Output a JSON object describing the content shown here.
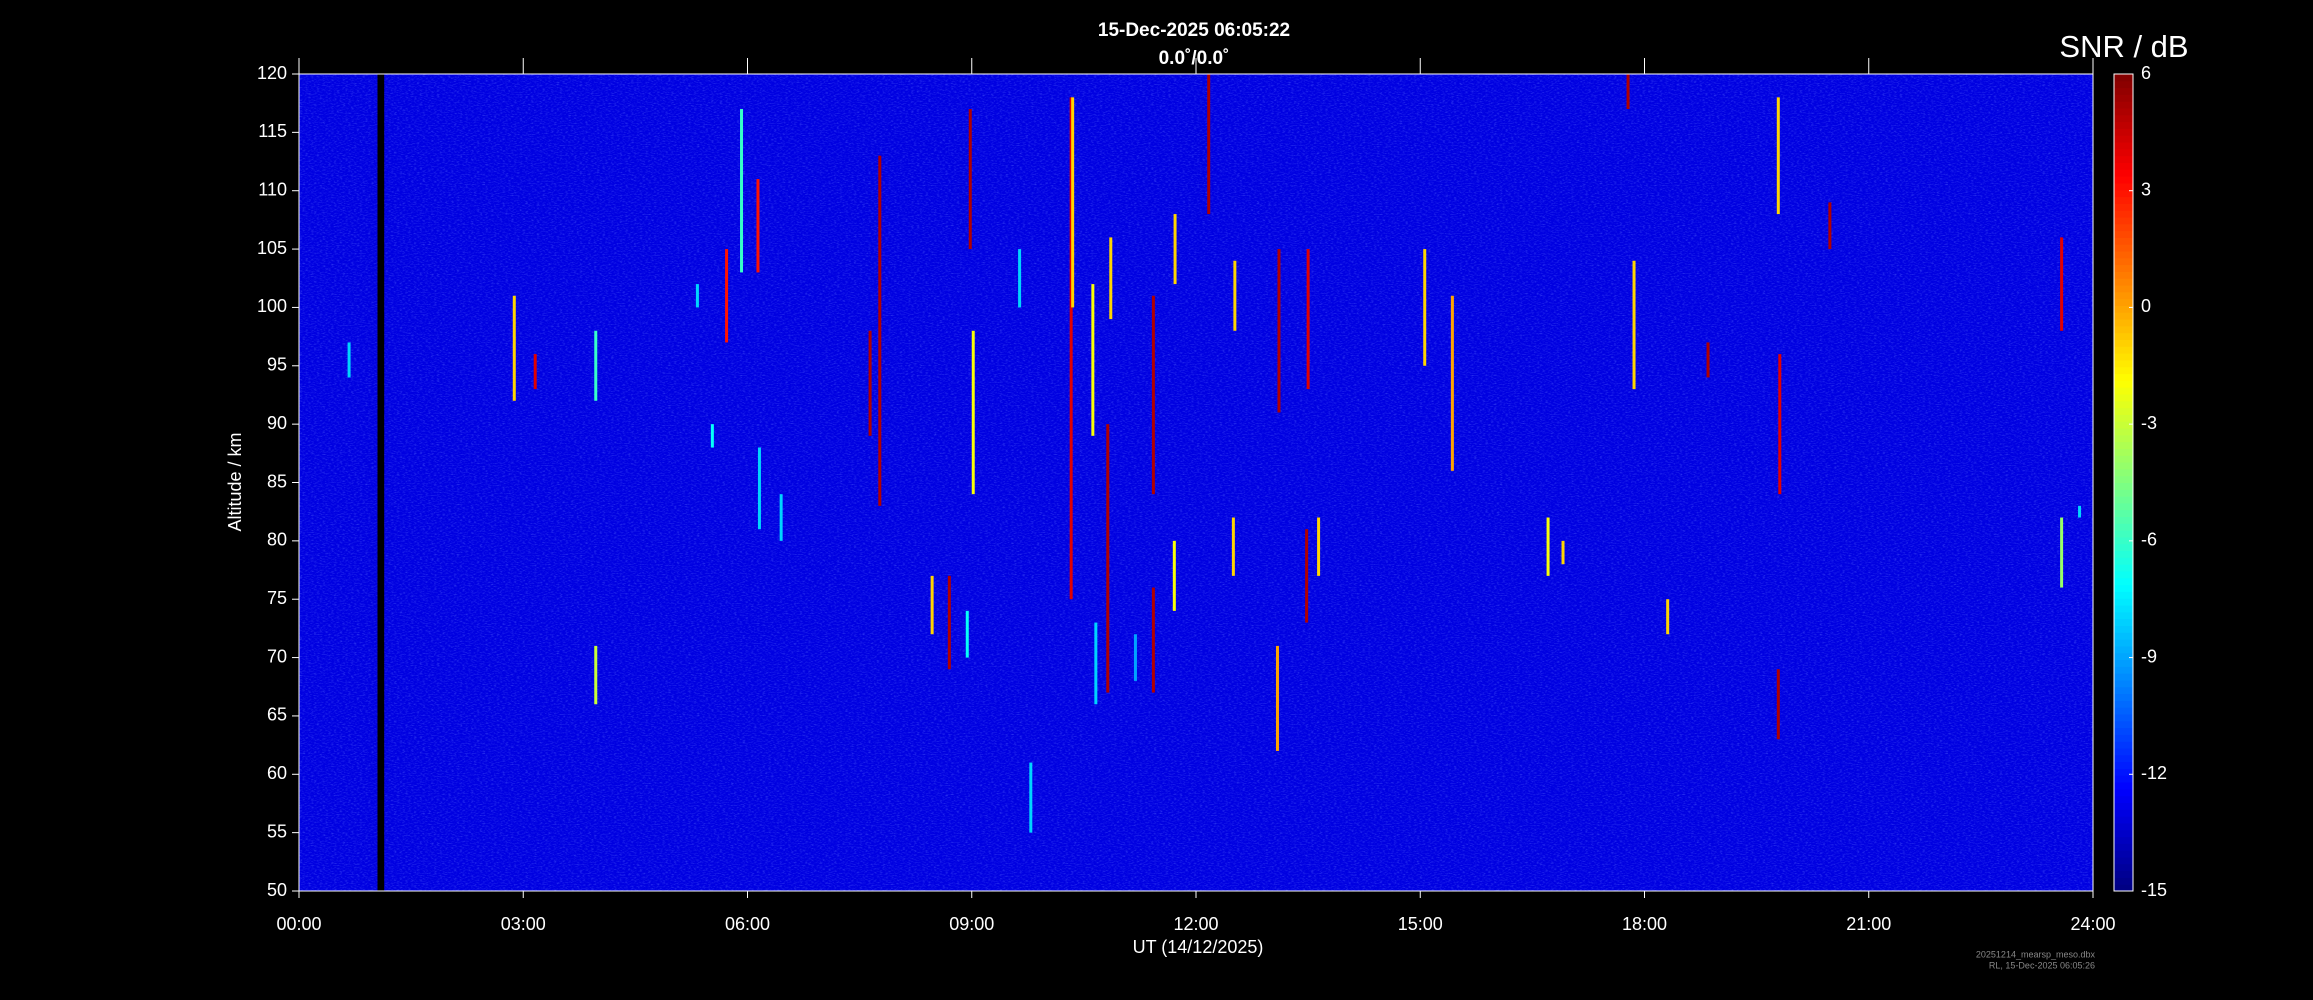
{
  "chart_data": {
    "type": "heatmap",
    "title": "15-Dec-2025 06:05:22",
    "subtitle": "0.0˚/0.0˚",
    "xlabel": "UT (14/12/2025)",
    "ylabel": "Altitude / km",
    "colorbar_label": "SNR / dB",
    "footnotes": [
      "20251214_mearsp_meso.dbx",
      "RL, 15-Dec-2025 06:05:26"
    ],
    "xlim": [
      0,
      24
    ],
    "xticks": [
      {
        "value": 0,
        "label": "00:00"
      },
      {
        "value": 3,
        "label": "03:00"
      },
      {
        "value": 6,
        "label": "06:00"
      },
      {
        "value": 9,
        "label": "09:00"
      },
      {
        "value": 12,
        "label": "12:00"
      },
      {
        "value": 15,
        "label": "15:00"
      },
      {
        "value": 18,
        "label": "18:00"
      },
      {
        "value": 21,
        "label": "21:00"
      },
      {
        "value": 24,
        "label": "24:00"
      }
    ],
    "ylim": [
      50,
      120
    ],
    "yticks": [
      50,
      55,
      60,
      65,
      70,
      75,
      80,
      85,
      90,
      95,
      100,
      105,
      110,
      115,
      120
    ],
    "clim": [
      -15,
      6
    ],
    "cticks": [
      -15,
      -12,
      -9,
      -6,
      -3,
      0,
      3,
      6
    ],
    "colormap": "jet",
    "background_value": -13,
    "gaps": [
      [
        1.05,
        1.14
      ]
    ],
    "echoes": [
      {
        "x": 0.67,
        "y0": 94,
        "y1": 97,
        "value": -8
      },
      {
        "x": 2.88,
        "y0": 92,
        "y1": 101,
        "value": -1
      },
      {
        "x": 3.16,
        "y0": 93,
        "y1": 96,
        "value": 4
      },
      {
        "x": 3.97,
        "y0": 66,
        "y1": 71,
        "value": -3
      },
      {
        "x": 3.97,
        "y0": 92,
        "y1": 98,
        "value": -6
      },
      {
        "x": 5.33,
        "y0": 100,
        "y1": 102,
        "value": -8
      },
      {
        "x": 5.53,
        "y0": 88,
        "y1": 90,
        "value": -7
      },
      {
        "x": 5.72,
        "y0": 97,
        "y1": 105,
        "value": 3
      },
      {
        "x": 5.92,
        "y0": 103,
        "y1": 117,
        "value": -6
      },
      {
        "x": 6.14,
        "y0": 103,
        "y1": 111,
        "value": 3
      },
      {
        "x": 6.16,
        "y0": 81,
        "y1": 88,
        "value": -8
      },
      {
        "x": 6.45,
        "y0": 80,
        "y1": 84,
        "value": -8
      },
      {
        "x": 7.64,
        "y0": 89,
        "y1": 98,
        "value": 5
      },
      {
        "x": 7.77,
        "y0": 83,
        "y1": 113,
        "value": 5
      },
      {
        "x": 8.47,
        "y0": 72,
        "y1": 77,
        "value": -1
      },
      {
        "x": 8.7,
        "y0": 69,
        "y1": 77,
        "value": 5
      },
      {
        "x": 8.94,
        "y0": 70,
        "y1": 74,
        "value": -7
      },
      {
        "x": 8.98,
        "y0": 105,
        "y1": 117,
        "value": 5
      },
      {
        "x": 9.02,
        "y0": 84,
        "y1": 98,
        "value": -2
      },
      {
        "x": 9.64,
        "y0": 100,
        "y1": 105,
        "value": -8
      },
      {
        "x": 9.79,
        "y0": 55,
        "y1": 61,
        "value": -8
      },
      {
        "x": 10.33,
        "y0": 75,
        "y1": 118,
        "value": 4
      },
      {
        "x": 10.35,
        "y0": 100,
        "y1": 118,
        "value": -1
      },
      {
        "x": 10.62,
        "y0": 89,
        "y1": 102,
        "value": -2
      },
      {
        "x": 10.66,
        "y0": 66,
        "y1": 73,
        "value": -8
      },
      {
        "x": 10.82,
        "y0": 67,
        "y1": 90,
        "value": 5
      },
      {
        "x": 10.86,
        "y0": 99,
        "y1": 106,
        "value": -1
      },
      {
        "x": 11.19,
        "y0": 68,
        "y1": 72,
        "value": -9
      },
      {
        "x": 11.43,
        "y0": 67,
        "y1": 76,
        "value": 5
      },
      {
        "x": 11.43,
        "y0": 84,
        "y1": 101,
        "value": 5
      },
      {
        "x": 11.71,
        "y0": 74,
        "y1": 80,
        "value": -2
      },
      {
        "x": 11.72,
        "y0": 102,
        "y1": 108,
        "value": -1
      },
      {
        "x": 12.17,
        "y0": 108,
        "y1": 120,
        "value": 5
      },
      {
        "x": 12.5,
        "y0": 77,
        "y1": 82,
        "value": -1
      },
      {
        "x": 12.52,
        "y0": 98,
        "y1": 104,
        "value": -1
      },
      {
        "x": 13.09,
        "y0": 62,
        "y1": 71,
        "value": 0
      },
      {
        "x": 13.11,
        "y0": 91,
        "y1": 105,
        "value": 5
      },
      {
        "x": 13.48,
        "y0": 73,
        "y1": 81,
        "value": 5
      },
      {
        "x": 13.5,
        "y0": 93,
        "y1": 105,
        "value": 4
      },
      {
        "x": 13.64,
        "y0": 77,
        "y1": 82,
        "value": -1
      },
      {
        "x": 15.06,
        "y0": 95,
        "y1": 105,
        "value": -1
      },
      {
        "x": 15.43,
        "y0": 86,
        "y1": 101,
        "value": 0
      },
      {
        "x": 16.71,
        "y0": 77,
        "y1": 82,
        "value": -2
      },
      {
        "x": 16.91,
        "y0": 78,
        "y1": 80,
        "value": -1
      },
      {
        "x": 17.78,
        "y0": 117,
        "y1": 120,
        "value": 5
      },
      {
        "x": 17.86,
        "y0": 93,
        "y1": 104,
        "value": -1
      },
      {
        "x": 18.31,
        "y0": 72,
        "y1": 75,
        "value": -1
      },
      {
        "x": 18.85,
        "y0": 94,
        "y1": 97,
        "value": 5
      },
      {
        "x": 19.79,
        "y0": 63,
        "y1": 69,
        "value": 5
      },
      {
        "x": 19.81,
        "y0": 84,
        "y1": 96,
        "value": 4
      },
      {
        "x": 19.79,
        "y0": 108,
        "y1": 118,
        "value": -1
      },
      {
        "x": 20.48,
        "y0": 105,
        "y1": 109,
        "value": 5
      },
      {
        "x": 23.58,
        "y0": 76,
        "y1": 82,
        "value": -4
      },
      {
        "x": 23.58,
        "y0": 98,
        "y1": 106,
        "value": 4
      },
      {
        "x": 23.82,
        "y0": 82,
        "y1": 83,
        "value": -8
      }
    ]
  }
}
